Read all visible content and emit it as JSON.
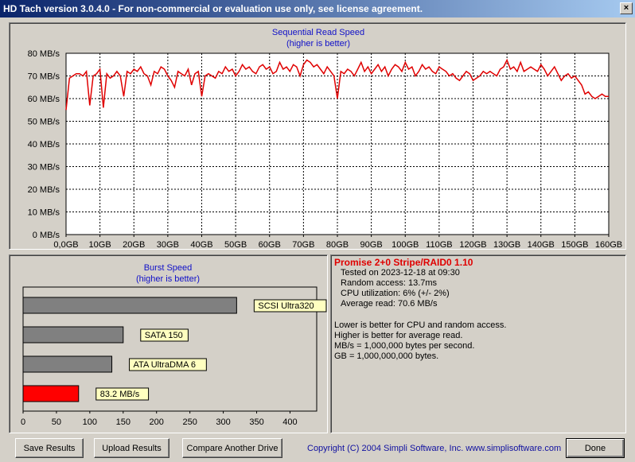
{
  "window": {
    "title": "HD Tach version 3.0.4.0  - For non-commercial or evaluation use only, see license agreement.",
    "close_glyph": "×"
  },
  "read_chart": {
    "title": "Sequential Read Speed",
    "subtitle": "(higher is better)"
  },
  "burst_chart": {
    "title": "Burst Speed",
    "subtitle": "(higher is better)"
  },
  "results": {
    "drive_name": "Promise 2+0 Stripe/RAID0 1.10",
    "tested_on": "Tested on 2023-12-18 at 09:30",
    "random_access": "Random access: 13.7ms",
    "cpu_utilization": "CPU utilization: 6% (+/- 2%)",
    "average_read": "Average read: 70.6 MB/s",
    "note1": "Lower is better for CPU and random access.",
    "note2": "Higher is better for average read.",
    "note3": "MB/s = 1,000,000 bytes per second.",
    "note4": "GB = 1,000,000,000 bytes."
  },
  "buttons": {
    "save": "Save Results",
    "upload": "Upload Results",
    "compare": "Compare Another Drive",
    "done": "Done"
  },
  "copyright": "Copyright (C) 2004 Simpli Software, Inc. www.simplisoftware.com",
  "colors": {
    "accent_blue": "#1010c8",
    "line_red": "#e00000",
    "label_yellow": "#ffffc0",
    "bar_gray": "#808080",
    "bar_red": "#ff0000"
  },
  "chart_data": [
    {
      "type": "line",
      "title": "Sequential Read Speed",
      "subtitle": "(higher is better)",
      "xlabel": "",
      "ylabel": "",
      "x_ticks": [
        "0,0GB",
        "10GB",
        "20GB",
        "30GB",
        "40GB",
        "50GB",
        "60GB",
        "70GB",
        "80GB",
        "90GB",
        "100GB",
        "110GB",
        "120GB",
        "130GB",
        "140GB",
        "150GB",
        "160GB"
      ],
      "y_ticks": [
        "0 MB/s",
        "10 MB/s",
        "20 MB/s",
        "30 MB/s",
        "40 MB/s",
        "50 MB/s",
        "60 MB/s",
        "70 MB/s",
        "80 MB/s"
      ],
      "xlim": [
        0,
        160
      ],
      "ylim": [
        0,
        80
      ],
      "grid": true,
      "series": [
        {
          "color": "#e00000",
          "x": [
            0,
            1,
            2,
            3,
            4,
            5,
            6,
            7,
            8,
            9,
            10,
            11,
            12,
            13,
            14,
            15,
            16,
            17,
            18,
            19,
            20,
            21,
            22,
            23,
            24,
            25,
            26,
            27,
            28,
            29,
            30,
            31,
            32,
            33,
            34,
            35,
            36,
            37,
            38,
            39,
            40,
            41,
            42,
            43,
            44,
            45,
            46,
            47,
            48,
            49,
            50,
            51,
            52,
            53,
            54,
            55,
            56,
            57,
            58,
            59,
            60,
            61,
            62,
            63,
            64,
            65,
            66,
            67,
            68,
            69,
            70,
            71,
            72,
            73,
            74,
            75,
            76,
            77,
            78,
            79,
            80,
            81,
            82,
            83,
            84,
            85,
            86,
            87,
            88,
            89,
            90,
            91,
            92,
            93,
            94,
            95,
            96,
            97,
            98,
            99,
            100,
            101,
            102,
            103,
            104,
            105,
            106,
            107,
            108,
            109,
            110,
            111,
            112,
            113,
            114,
            115,
            116,
            117,
            118,
            119,
            120,
            121,
            122,
            123,
            124,
            125,
            126,
            127,
            128,
            129,
            130,
            131,
            132,
            133,
            134,
            135,
            136,
            137,
            138,
            139,
            140,
            141,
            142,
            143,
            144,
            145,
            146,
            147,
            148,
            149,
            150,
            151,
            152,
            153,
            154,
            155,
            156,
            157,
            158,
            159,
            160
          ],
          "y": [
            55,
            69,
            70,
            71,
            71,
            70,
            72,
            57,
            70,
            71,
            73,
            56,
            71,
            69,
            70,
            72,
            70,
            61,
            72,
            71,
            73,
            72,
            74,
            71,
            70,
            66,
            72,
            71,
            74,
            73,
            70,
            68,
            65,
            72,
            71,
            70,
            73,
            66,
            71,
            72,
            61,
            70,
            71,
            70,
            69,
            72,
            71,
            74,
            72,
            73,
            70,
            72,
            75,
            73,
            74,
            72,
            71,
            74,
            75,
            73,
            74,
            71,
            72,
            76,
            73,
            74,
            72,
            75,
            74,
            70,
            75,
            77,
            76,
            74,
            75,
            73,
            71,
            74,
            72,
            70,
            60,
            72,
            71,
            73,
            72,
            70,
            73,
            76,
            72,
            74,
            71,
            73,
            75,
            72,
            74,
            70,
            73,
            75,
            74,
            72,
            76,
            73,
            74,
            70,
            72,
            75,
            73,
            74,
            72,
            71,
            74,
            73,
            72,
            70,
            71,
            69,
            68,
            70,
            72,
            71,
            68,
            69,
            70,
            72,
            71,
            72,
            71,
            70,
            73,
            74,
            77,
            73,
            74,
            72,
            76,
            72,
            73,
            74,
            73,
            72,
            75,
            73,
            70,
            72,
            74,
            71,
            68,
            70,
            71,
            69,
            70,
            68,
            66,
            62,
            63,
            61,
            60,
            61,
            62,
            61,
            61
          ]
        }
      ]
    },
    {
      "type": "bar",
      "orientation": "horizontal",
      "title": "Burst Speed",
      "subtitle": "(higher is better)",
      "categories": [
        "SCSI Ultra320",
        "SATA 150",
        "ATA UltraDMA 6",
        "83.2 MB/s"
      ],
      "values": [
        320,
        150,
        133,
        83.2
      ],
      "bar_colors": [
        "#808080",
        "#808080",
        "#808080",
        "#ff0000"
      ],
      "x_ticks": [
        "0",
        "50",
        "100",
        "150",
        "200",
        "250",
        "300",
        "350",
        "400"
      ],
      "xlim": [
        0,
        440
      ]
    }
  ]
}
